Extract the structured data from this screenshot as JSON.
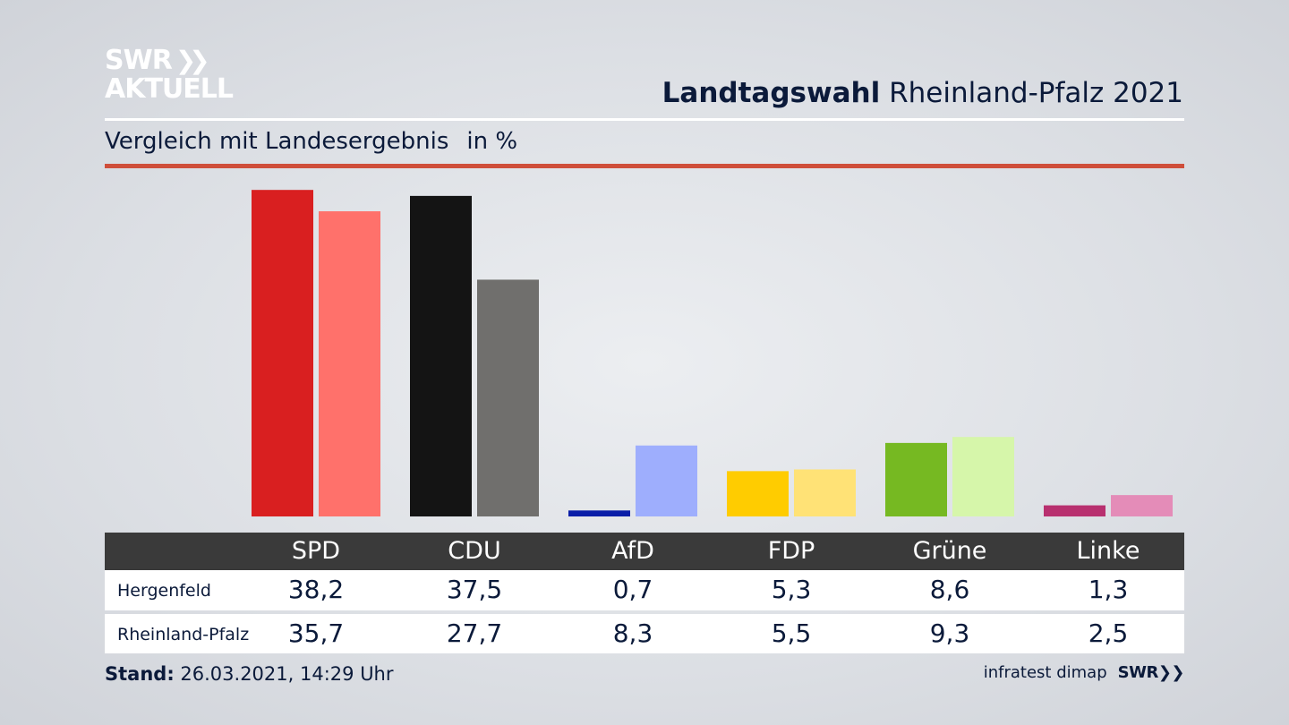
{
  "header": {
    "logo_line1": "SWR",
    "logo_line2": "AKTUELL",
    "title_bold": "Landtagswahl",
    "title_rest": "Rheinland-Pfalz 2021",
    "subtitle": "Vergleich mit Landesergebnis",
    "unit": "in %"
  },
  "footer": {
    "stand_label": "Stand:",
    "stand_value": "26.03.2021, 14:29 Uhr",
    "source": "infratest dimap",
    "source_brand": "SWR"
  },
  "chart_data": {
    "type": "bar",
    "categories": [
      "SPD",
      "CDU",
      "AfD",
      "FDP",
      "Grüne",
      "Linke"
    ],
    "series": [
      {
        "name": "Hergenfeld",
        "values": [
          38.2,
          37.5,
          0.7,
          5.3,
          8.6,
          1.3
        ],
        "colors": [
          "#d91f20",
          "#141414",
          "#0a1ea8",
          "#ffcc00",
          "#76b922",
          "#b8306f"
        ]
      },
      {
        "name": "Rheinland-Pfalz",
        "values": [
          35.7,
          27.7,
          8.3,
          5.5,
          9.3,
          2.5
        ],
        "colors": [
          "#ff716b",
          "#706f6d",
          "#9eaefd",
          "#ffe276",
          "#d6f6aa",
          "#e48cb8"
        ]
      }
    ],
    "value_labels": [
      [
        "38,2",
        "37,5",
        "0,7",
        "5,3",
        "8,6",
        "1,3"
      ],
      [
        "35,7",
        "27,7",
        "8,3",
        "5,5",
        "9,3",
        "2,5"
      ]
    ],
    "ylim": [
      0,
      40
    ],
    "grid": false,
    "legend": "table-below"
  }
}
